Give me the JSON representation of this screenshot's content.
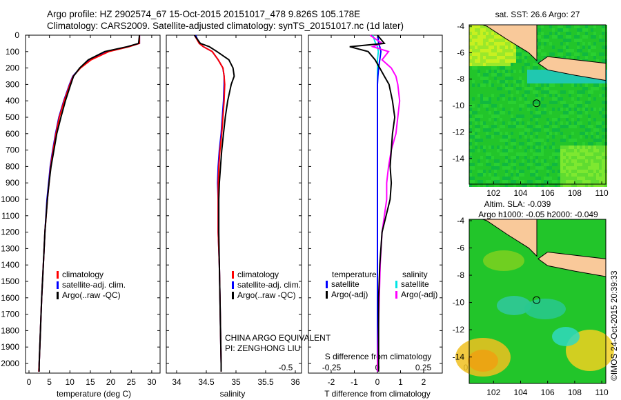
{
  "title_line1": "Argo profile: HZ 2902574_67 15-Oct-2015 20151017_478 9.826S 105.178E",
  "title_line2": "Climatology: CARS2009. Satellite-adjusted climatology: synTS_20151017.nc (1d later)",
  "colors": {
    "climatology": "#ff0000",
    "satellite": "#0000ff",
    "argo": "#000000",
    "sal_satellite": "#00e5e5",
    "sal_argo": "#ff00ff",
    "land": "#f9c99a",
    "sea": "#22c52a"
  },
  "pi_line1": "CHINA ARGO EQUIVALENT",
  "pi_line2": "PI: ZENGHONG LIU",
  "credit": "©IMOS 24-Oct-2015 20:39:33",
  "chart_data": [
    {
      "type": "line",
      "name": "temperature-profile",
      "xlabel": "temperature (deg C)",
      "xticks": [
        "0",
        "5",
        "10",
        "15",
        "20",
        "25",
        "30"
      ],
      "xlim": [
        -1,
        32
      ],
      "ylim": [
        2080,
        0
      ],
      "yticks": [
        "0",
        "100",
        "200",
        "300",
        "400",
        "500",
        "600",
        "700",
        "800",
        "900",
        "1000",
        "1100",
        "1200",
        "1300",
        "1400",
        "1500",
        "1600",
        "1700",
        "1800",
        "1900",
        "2000"
      ],
      "legend": [
        "climatology",
        "satellite-adj. clim.",
        "Argo(..raw -QC)"
      ],
      "depth": [
        0,
        50,
        70,
        100,
        150,
        200,
        250,
        300,
        400,
        500,
        600,
        700,
        800,
        900,
        1000,
        1200,
        1400,
        1600,
        1800,
        2000,
        2050
      ],
      "series": [
        {
          "name": "climatology",
          "values": [
            27,
            27,
            24.5,
            19.5,
            15.2,
            12.6,
            10.8,
            10,
            8.6,
            7.4,
            6.6,
            5.9,
            5.3,
            4.9,
            4.5,
            3.9,
            3.5,
            3.1,
            2.8,
            2.5,
            2.4
          ]
        },
        {
          "name": "satellite-adj. clim.",
          "values": [
            27,
            27,
            24.3,
            19.3,
            15,
            12.5,
            10.7,
            9.9,
            8.5,
            7.3,
            6.5,
            5.8,
            5.2,
            4.8,
            4.4,
            3.9,
            3.5,
            3.1,
            2.8,
            2.5,
            2.4
          ]
        },
        {
          "name": "Argo",
          "values": [
            27,
            26.8,
            24,
            18.5,
            14.5,
            12.4,
            10.9,
            10.2,
            8.9,
            7.8,
            6.8,
            6.1,
            5.4,
            4.9,
            4.5,
            3.9,
            3.5,
            3.1,
            2.8,
            2.5,
            2.5
          ]
        }
      ]
    },
    {
      "type": "line",
      "name": "salinity-profile",
      "xlabel": "salinity",
      "xticks": [
        "34",
        "34.5",
        "35",
        "35.5",
        "36"
      ],
      "xlim": [
        33.83,
        36.1
      ],
      "ylim": [
        2080,
        0
      ],
      "legend": [
        "climatology",
        "satellite-adj. clim.",
        "Argo(..raw -QC)"
      ],
      "depth": [
        0,
        50,
        70,
        100,
        150,
        200,
        250,
        300,
        400,
        500,
        600,
        700,
        800,
        900,
        1000,
        1200,
        1400,
        1600,
        1800,
        2000,
        2050
      ],
      "series": [
        {
          "name": "climatology",
          "values": [
            34.3,
            34.38,
            34.45,
            34.6,
            34.7,
            34.78,
            34.8,
            34.81,
            34.8,
            34.78,
            34.76,
            34.73,
            34.71,
            34.7,
            34.7,
            34.7,
            34.72,
            34.73,
            34.74,
            34.75,
            34.75
          ]
        },
        {
          "name": "satellite-adj. clim.",
          "values": [
            34.32,
            34.38,
            34.45,
            34.6,
            34.7,
            34.78,
            34.8,
            34.8,
            34.79,
            34.77,
            34.75,
            34.72,
            34.7,
            34.69,
            34.7,
            34.7,
            34.72,
            34.73,
            34.74,
            34.75,
            34.75
          ]
        },
        {
          "name": "Argo",
          "values": [
            34.3,
            34.4,
            34.55,
            34.68,
            34.88,
            34.95,
            34.97,
            34.92,
            34.86,
            34.82,
            34.79,
            34.76,
            34.74,
            34.72,
            34.71,
            34.71,
            34.72,
            34.73,
            34.74,
            34.75,
            34.75
          ]
        }
      ]
    },
    {
      "type": "line",
      "name": "difference-profile",
      "xlabel": "T difference from climatology",
      "x2label": "S difference from climatology",
      "xticks": [
        "-2",
        "-1",
        "0",
        "1",
        "2"
      ],
      "x2ticks": [
        "-0.5",
        "-0.25",
        "0",
        "0.25",
        "0.5"
      ],
      "xlim": [
        -2.4,
        2.6
      ],
      "legend_headers": [
        "temperature",
        "salinity"
      ],
      "legend": [
        "satellite",
        "Argo(-adj)",
        "satellite",
        "Argo(-adj)"
      ],
      "depth": [
        0,
        50,
        70,
        100,
        150,
        200,
        250,
        300,
        400,
        500,
        600,
        700,
        800,
        900,
        1000,
        1200,
        1400,
        1600,
        1800,
        2000,
        2050
      ],
      "series": [
        {
          "name": "T satellite",
          "values": [
            0.02,
            0.05,
            0.1,
            0.15,
            0.1,
            0.05,
            0.02,
            0,
            0,
            0,
            0,
            0,
            0,
            0,
            0,
            0,
            0,
            0,
            0,
            0,
            0
          ]
        },
        {
          "name": "T Argo",
          "values": [
            0,
            0.3,
            -1.2,
            -0.4,
            -0.1,
            0.1,
            0.3,
            0.5,
            0.65,
            0.75,
            0.65,
            0.6,
            0.55,
            0.6,
            0.55,
            0.2,
            0.1,
            0.05,
            0.05,
            0.05,
            0.05
          ]
        },
        {
          "name": "S satellite",
          "values": [
            -0.05,
            -0.02,
            0,
            0.01,
            0,
            0,
            0,
            0,
            0,
            0,
            0,
            0,
            0,
            0,
            0,
            0,
            0,
            0,
            0,
            0,
            0
          ]
        },
        {
          "name": "S Argo",
          "values": [
            -0.08,
            0.05,
            -0.05,
            0.12,
            0.05,
            0.15,
            0.2,
            0.22,
            0.24,
            0.22,
            0.2,
            0.15,
            0.12,
            0.1,
            0.1,
            0.05,
            0.03,
            0.02,
            0.01,
            0,
            0
          ]
        }
      ]
    },
    {
      "type": "heatmap",
      "name": "sst-map",
      "title": "sat. SST: 26.6 Argo: 27",
      "xticks": [
        "102",
        "104",
        "106",
        "108",
        "110"
      ],
      "yticks": [
        "-4",
        "-6",
        "-8",
        "-10",
        "-12",
        "-14"
      ],
      "argo_lon": 105.178,
      "argo_lat": -9.826
    },
    {
      "type": "heatmap",
      "name": "sla-map",
      "title1": "Altim. SLA: -0.039",
      "title2": "Argo h1000: -0.05 h2000: -0.049",
      "xticks": [
        "102",
        "104",
        "106",
        "108",
        "110"
      ],
      "yticks": [
        "-4",
        "-6",
        "-8",
        "-10",
        "-12",
        "-14"
      ],
      "argo_lon": 105.178,
      "argo_lat": -9.826
    }
  ]
}
